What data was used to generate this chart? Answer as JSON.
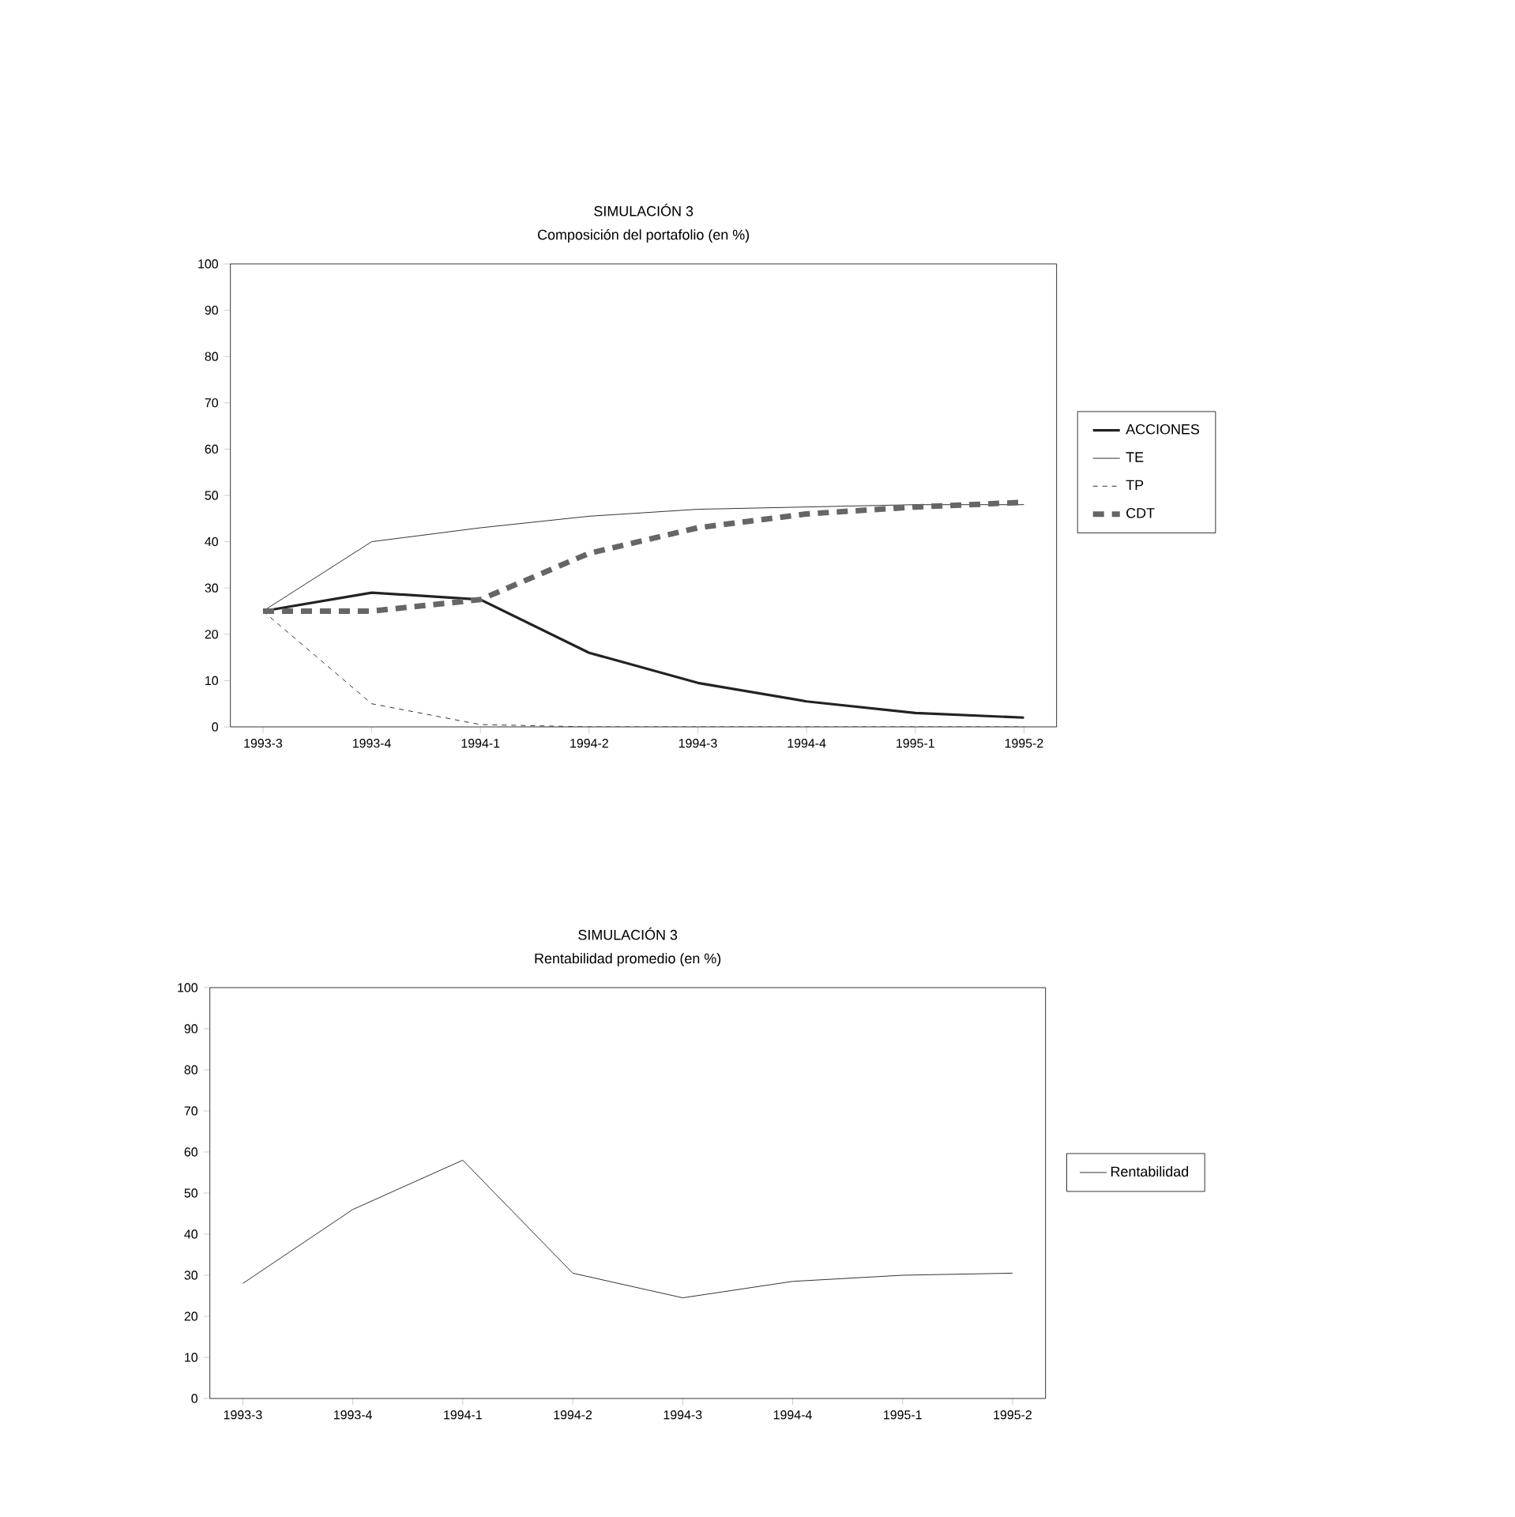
{
  "chart_data": [
    {
      "type": "line",
      "title": "SIMULACIÓN 3",
      "subtitle": "Composición del portafolio (en %)",
      "categories": [
        "1993-3",
        "1993-4",
        "1994-1",
        "1994-2",
        "1994-3",
        "1994-4",
        "1995-1",
        "1995-2"
      ],
      "series": [
        {
          "name": "ACCIONES",
          "color": "#222222",
          "line_style": "solid",
          "values": [
            25,
            29,
            27.5,
            16,
            9.5,
            5.5,
            3,
            2
          ]
        },
        {
          "name": "TE",
          "color": "#333333",
          "line_style": "solid",
          "values": [
            25,
            40,
            43,
            45.5,
            47,
            47.5,
            48,
            48
          ]
        },
        {
          "name": "TP",
          "color": "#333333",
          "line_style": "dashed",
          "values": [
            25,
            5,
            0.5,
            0,
            0,
            0,
            0,
            0
          ]
        },
        {
          "name": "CDT",
          "color": "#666666",
          "line_style": "dashed",
          "values": [
            25,
            25,
            27.5,
            37.5,
            43,
            46,
            47.5,
            48.5
          ]
        }
      ],
      "ylim": [
        0,
        100
      ],
      "yticks": [
        0,
        10,
        20,
        30,
        40,
        50,
        60,
        70,
        80,
        90,
        100
      ],
      "grid": false,
      "legend": "right",
      "marker": "none"
    },
    {
      "type": "line",
      "title": "SIMULACIÓN 3",
      "subtitle": "Rentabilidad promedio (en %)",
      "categories": [
        "1993-3",
        "1993-4",
        "1994-1",
        "1994-2",
        "1994-3",
        "1994-4",
        "1995-1",
        "1995-2"
      ],
      "series": [
        {
          "name": "Rentabilidad",
          "color": "#333333",
          "line_style": "solid",
          "values": [
            28,
            46,
            58,
            30.5,
            24.5,
            28.5,
            30,
            30.5
          ]
        }
      ],
      "ylim": [
        0,
        100
      ],
      "yticks": [
        0,
        10,
        20,
        30,
        40,
        50,
        60,
        70,
        80,
        90,
        100
      ],
      "grid": false,
      "legend": "right",
      "marker": "none"
    }
  ]
}
